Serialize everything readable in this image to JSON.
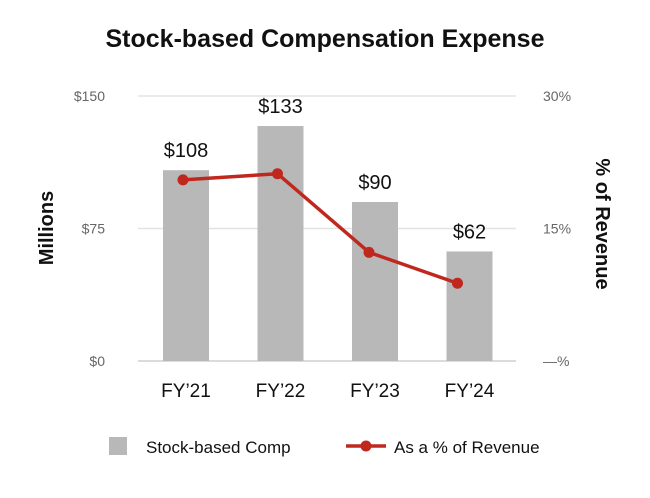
{
  "chart_data": {
    "type": "bar",
    "title": "Stock-based Compensation Expense",
    "categories": [
      "FY’21",
      "FY’22",
      "FY’23",
      "FY’24"
    ],
    "series": [
      {
        "name": "Stock-based Comp",
        "kind": "bar",
        "axis": "left",
        "values": [
          108,
          133,
          90,
          62
        ],
        "labels": [
          "$108",
          "$133",
          "$90",
          "$62"
        ],
        "color": "#b8b8b8"
      },
      {
        "name": "As a % of Revenue",
        "kind": "line",
        "axis": "right",
        "values": [
          20.5,
          21.2,
          12.3,
          8.8
        ],
        "color": "#c0281e"
      }
    ],
    "y_left": {
      "label": "Millions",
      "range": [
        0,
        150
      ],
      "ticks": [
        0,
        75,
        150
      ],
      "tick_labels": [
        "$0",
        "$75",
        "$150"
      ]
    },
    "y_right": {
      "label": "% of Revenue",
      "range": [
        0,
        30
      ],
      "ticks": [
        0,
        15,
        30
      ],
      "tick_labels": [
        "—%",
        "15%",
        "30%"
      ]
    },
    "grid": true,
    "legend_position": "bottom"
  }
}
